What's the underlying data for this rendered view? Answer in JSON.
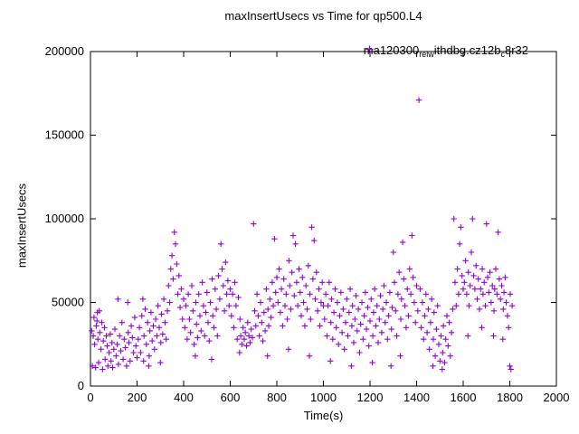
{
  "chart_data": {
    "type": "scatter",
    "title": "maxInsertUsecs vs Time for qp500.L4",
    "xlabel": "Time(s)",
    "ylabel": "maxInsertUsecs",
    "xlim": [
      0,
      2000
    ],
    "ylim": [
      0,
      200000
    ],
    "xticks": [
      0,
      200,
      400,
      600,
      800,
      1000,
      1200,
      1400,
      1600,
      1800,
      2000
    ],
    "yticks": [
      0,
      50000,
      100000,
      150000,
      200000
    ],
    "grid": false,
    "legend_position": "top-right-inside",
    "point_color": "#9400d3",
    "marker": "plus",
    "legend": {
      "label_raw": "ma120300_rel_withdbg.cz12b_c8r32",
      "label_parts": [
        {
          "t": "ma120300",
          "sub": false
        },
        {
          "t": "rel",
          "sub": true
        },
        {
          "t": "w",
          "sub": true
        },
        {
          "t": "ithdbg.cz12b",
          "sub": false
        },
        {
          "t": "c",
          "sub": true
        },
        {
          "t": "8r32",
          "sub": false
        }
      ]
    },
    "points": [
      [
        5,
        33000
      ],
      [
        8,
        12000
      ],
      [
        12,
        30000
      ],
      [
        15,
        41000
      ],
      [
        18,
        25000
      ],
      [
        22,
        11000
      ],
      [
        25,
        36000
      ],
      [
        28,
        39000
      ],
      [
        30,
        44000
      ],
      [
        32,
        28000
      ],
      [
        35,
        14000
      ],
      [
        38,
        45000
      ],
      [
        40,
        32000
      ],
      [
        45,
        22000
      ],
      [
        48,
        38000
      ],
      [
        52,
        10000
      ],
      [
        55,
        27000
      ],
      [
        60,
        35000
      ],
      [
        63,
        16000
      ],
      [
        68,
        30000
      ],
      [
        72,
        24000
      ],
      [
        75,
        12000
      ],
      [
        80,
        20000
      ],
      [
        85,
        31000
      ],
      [
        88,
        15000
      ],
      [
        92,
        26000
      ],
      [
        95,
        11000
      ],
      [
        100,
        22000
      ],
      [
        105,
        34000
      ],
      [
        110,
        18000
      ],
      [
        115,
        25000
      ],
      [
        118,
        52000
      ],
      [
        120,
        13000
      ],
      [
        125,
        30000
      ],
      [
        130,
        21000
      ],
      [
        135,
        38000
      ],
      [
        140,
        16000
      ],
      [
        145,
        28000
      ],
      [
        150,
        23000
      ],
      [
        155,
        12000
      ],
      [
        160,
        50000
      ],
      [
        162,
        32000
      ],
      [
        165,
        26000
      ],
      [
        170,
        15000
      ],
      [
        175,
        36000
      ],
      [
        180,
        29000
      ],
      [
        185,
        20000
      ],
      [
        190,
        41000
      ],
      [
        195,
        24000
      ],
      [
        200,
        17000
      ],
      [
        205,
        28000
      ],
      [
        210,
        35000
      ],
      [
        215,
        20000
      ],
      [
        220,
        42000
      ],
      [
        225,
        52000
      ],
      [
        228,
        15000
      ],
      [
        230,
        30000
      ],
      [
        235,
        46000
      ],
      [
        240,
        25000
      ],
      [
        245,
        38000
      ],
      [
        250,
        12000
      ],
      [
        252,
        18000
      ],
      [
        255,
        33000
      ],
      [
        260,
        44000
      ],
      [
        265,
        27000
      ],
      [
        270,
        36000
      ],
      [
        275,
        22000
      ],
      [
        280,
        40000
      ],
      [
        285,
        30000
      ],
      [
        290,
        48000
      ],
      [
        295,
        35000
      ],
      [
        300,
        14000
      ],
      [
        302,
        26000
      ],
      [
        305,
        43000
      ],
      [
        310,
        31000
      ],
      [
        315,
        52000
      ],
      [
        320,
        38000
      ],
      [
        325,
        28000
      ],
      [
        330,
        45000
      ],
      [
        335,
        60000
      ],
      [
        340,
        50000
      ],
      [
        345,
        70000
      ],
      [
        350,
        78000
      ],
      [
        355,
        64000
      ],
      [
        360,
        92000
      ],
      [
        365,
        85000
      ],
      [
        370,
        73000
      ],
      [
        375,
        55000
      ],
      [
        380,
        66000
      ],
      [
        385,
        47000
      ],
      [
        390,
        58000
      ],
      [
        395,
        40000
      ],
      [
        400,
        52000
      ],
      [
        405,
        35000
      ],
      [
        410,
        48000
      ],
      [
        415,
        28000
      ],
      [
        420,
        55000
      ],
      [
        425,
        40000
      ],
      [
        430,
        32000
      ],
      [
        435,
        60000
      ],
      [
        440,
        45000
      ],
      [
        445,
        25000
      ],
      [
        450,
        18000
      ],
      [
        452,
        50000
      ],
      [
        455,
        37000
      ],
      [
        460,
        29000
      ],
      [
        465,
        55000
      ],
      [
        470,
        42000
      ],
      [
        475,
        33000
      ],
      [
        480,
        62000
      ],
      [
        485,
        48000
      ],
      [
        490,
        30000
      ],
      [
        495,
        44000
      ],
      [
        500,
        56000
      ],
      [
        505,
        38000
      ],
      [
        510,
        27000
      ],
      [
        515,
        50000
      ],
      [
        520,
        16000
      ],
      [
        522,
        64000
      ],
      [
        525,
        42000
      ],
      [
        530,
        35000
      ],
      [
        535,
        58000
      ],
      [
        540,
        46000
      ],
      [
        545,
        30000
      ],
      [
        550,
        66000
      ],
      [
        555,
        52000
      ],
      [
        560,
        85000
      ],
      [
        565,
        70000
      ],
      [
        570,
        60000
      ],
      [
        575,
        45000
      ],
      [
        580,
        74000
      ],
      [
        585,
        55000
      ],
      [
        590,
        63000
      ],
      [
        595,
        48000
      ],
      [
        600,
        58000
      ],
      [
        605,
        42000
      ],
      [
        610,
        55000
      ],
      [
        615,
        35000
      ],
      [
        620,
        62000
      ],
      [
        625,
        48000
      ],
      [
        630,
        28000
      ],
      [
        635,
        53000
      ],
      [
        640,
        20000
      ],
      [
        642,
        40000
      ],
      [
        645,
        30000
      ],
      [
        650,
        25000
      ],
      [
        655,
        35000
      ],
      [
        660,
        28000
      ],
      [
        665,
        32000
      ],
      [
        670,
        24000
      ],
      [
        675,
        38000
      ],
      [
        680,
        30000
      ],
      [
        685,
        26000
      ],
      [
        690,
        34000
      ],
      [
        695,
        29000
      ],
      [
        700,
        97000
      ],
      [
        705,
        45000
      ],
      [
        710,
        36000
      ],
      [
        715,
        55000
      ],
      [
        720,
        42000
      ],
      [
        725,
        30000
      ],
      [
        730,
        50000
      ],
      [
        735,
        38000
      ],
      [
        740,
        27000
      ],
      [
        745,
        44000
      ],
      [
        750,
        33000
      ],
      [
        755,
        58000
      ],
      [
        760,
        18000
      ],
      [
        762,
        46000
      ],
      [
        765,
        36000
      ],
      [
        770,
        52000
      ],
      [
        775,
        41000
      ],
      [
        780,
        62000
      ],
      [
        785,
        48000
      ],
      [
        790,
        88000
      ],
      [
        795,
        56000
      ],
      [
        800,
        65000
      ],
      [
        805,
        50000
      ],
      [
        810,
        70000
      ],
      [
        815,
        44000
      ],
      [
        820,
        58000
      ],
      [
        825,
        36000
      ],
      [
        830,
        64000
      ],
      [
        835,
        48000
      ],
      [
        840,
        55000
      ],
      [
        845,
        40000
      ],
      [
        850,
        22000
      ],
      [
        852,
        75000
      ],
      [
        855,
        60000
      ],
      [
        860,
        46000
      ],
      [
        865,
        68000
      ],
      [
        870,
        90000
      ],
      [
        875,
        54000
      ],
      [
        880,
        85000
      ],
      [
        885,
        62000
      ],
      [
        890,
        48000
      ],
      [
        895,
        70000
      ],
      [
        900,
        56000
      ],
      [
        905,
        42000
      ],
      [
        910,
        65000
      ],
      [
        915,
        50000
      ],
      [
        920,
        36000
      ],
      [
        925,
        60000
      ],
      [
        930,
        46000
      ],
      [
        935,
        72000
      ],
      [
        940,
        18000
      ],
      [
        942,
        55000
      ],
      [
        945,
        40000
      ],
      [
        950,
        95000
      ],
      [
        955,
        64000
      ],
      [
        960,
        87000
      ],
      [
        965,
        52000
      ],
      [
        970,
        68000
      ],
      [
        975,
        45000
      ],
      [
        980,
        58000
      ],
      [
        985,
        36000
      ],
      [
        990,
        50000
      ],
      [
        995,
        62000
      ],
      [
        1000,
        48000
      ],
      [
        1005,
        40000
      ],
      [
        1010,
        55000
      ],
      [
        1015,
        30000
      ],
      [
        1020,
        48000
      ],
      [
        1025,
        62000
      ],
      [
        1030,
        15000
      ],
      [
        1032,
        38000
      ],
      [
        1035,
        52000
      ],
      [
        1040,
        28000
      ],
      [
        1045,
        44000
      ],
      [
        1050,
        58000
      ],
      [
        1055,
        35000
      ],
      [
        1060,
        50000
      ],
      [
        1065,
        25000
      ],
      [
        1070,
        42000
      ],
      [
        1075,
        56000
      ],
      [
        1080,
        32000
      ],
      [
        1085,
        46000
      ],
      [
        1090,
        22000
      ],
      [
        1095,
        38000
      ],
      [
        1100,
        52000
      ],
      [
        1105,
        30000
      ],
      [
        1110,
        44000
      ],
      [
        1115,
        58000
      ],
      [
        1120,
        12000
      ],
      [
        1122,
        36000
      ],
      [
        1125,
        48000
      ],
      [
        1130,
        26000
      ],
      [
        1135,
        40000
      ],
      [
        1140,
        54000
      ],
      [
        1145,
        33000
      ],
      [
        1150,
        46000
      ],
      [
        1155,
        20000
      ],
      [
        1160,
        37000
      ],
      [
        1165,
        50000
      ],
      [
        1170,
        28000
      ],
      [
        1175,
        42000
      ],
      [
        1180,
        56000
      ],
      [
        1185,
        34000
      ],
      [
        1190,
        47000
      ],
      [
        1195,
        24000
      ],
      [
        1200,
        39000
      ],
      [
        1205,
        52000
      ],
      [
        1210,
        14000
      ],
      [
        1212,
        30000
      ],
      [
        1215,
        44000
      ],
      [
        1220,
        58000
      ],
      [
        1225,
        36000
      ],
      [
        1230,
        48000
      ],
      [
        1235,
        26000
      ],
      [
        1240,
        40000
      ],
      [
        1245,
        54000
      ],
      [
        1250,
        32000
      ],
      [
        1255,
        46000
      ],
      [
        1260,
        60000
      ],
      [
        1265,
        38000
      ],
      [
        1270,
        50000
      ],
      [
        1275,
        28000
      ],
      [
        1280,
        42000
      ],
      [
        1285,
        56000
      ],
      [
        1290,
        12000
      ],
      [
        1292,
        34000
      ],
      [
        1295,
        47000
      ],
      [
        1300,
        80000
      ],
      [
        1305,
        62000
      ],
      [
        1310,
        45000
      ],
      [
        1315,
        30000
      ],
      [
        1320,
        55000
      ],
      [
        1325,
        68000
      ],
      [
        1330,
        18000
      ],
      [
        1332,
        40000
      ],
      [
        1335,
        52000
      ],
      [
        1340,
        86000
      ],
      [
        1345,
        64000
      ],
      [
        1350,
        48000
      ],
      [
        1355,
        35000
      ],
      [
        1360,
        58000
      ],
      [
        1365,
        42000
      ],
      [
        1370,
        70000
      ],
      [
        1375,
        55000
      ],
      [
        1380,
        90000
      ],
      [
        1385,
        65000
      ],
      [
        1390,
        50000
      ],
      [
        1395,
        38000
      ],
      [
        1400,
        60000
      ],
      [
        1405,
        45000
      ],
      [
        1410,
        171000
      ],
      [
        1415,
        58000
      ],
      [
        1420,
        35000
      ],
      [
        1425,
        50000
      ],
      [
        1430,
        28000
      ],
      [
        1435,
        42000
      ],
      [
        1440,
        55000
      ],
      [
        1445,
        32000
      ],
      [
        1450,
        46000
      ],
      [
        1455,
        22000
      ],
      [
        1460,
        38000
      ],
      [
        1465,
        52000
      ],
      [
        1470,
        12000
      ],
      [
        1472,
        28000
      ],
      [
        1475,
        44000
      ],
      [
        1480,
        18000
      ],
      [
        1485,
        34000
      ],
      [
        1490,
        48000
      ],
      [
        1495,
        25000
      ],
      [
        1500,
        15000
      ],
      [
        1505,
        30000
      ],
      [
        1510,
        10000
      ],
      [
        1512,
        20000
      ],
      [
        1515,
        36000
      ],
      [
        1520,
        14000
      ],
      [
        1525,
        28000
      ],
      [
        1530,
        42000
      ],
      [
        1535,
        24000
      ],
      [
        1540,
        38000
      ],
      [
        1545,
        18000
      ],
      [
        1550,
        32000
      ],
      [
        1555,
        46000
      ],
      [
        1560,
        100000
      ],
      [
        1565,
        62000
      ],
      [
        1570,
        48000
      ],
      [
        1575,
        70000
      ],
      [
        1580,
        55000
      ],
      [
        1585,
        85000
      ],
      [
        1590,
        95000
      ],
      [
        1595,
        66000
      ],
      [
        1600,
        58000
      ],
      [
        1605,
        62000
      ],
      [
        1610,
        75000
      ],
      [
        1615,
        55000
      ],
      [
        1620,
        30000
      ],
      [
        1622,
        68000
      ],
      [
        1625,
        48000
      ],
      [
        1630,
        60000
      ],
      [
        1635,
        80000
      ],
      [
        1640,
        100000
      ],
      [
        1645,
        66000
      ],
      [
        1650,
        58000
      ],
      [
        1655,
        72000
      ],
      [
        1660,
        52000
      ],
      [
        1665,
        64000
      ],
      [
        1670,
        46000
      ],
      [
        1675,
        58000
      ],
      [
        1680,
        35000
      ],
      [
        1682,
        70000
      ],
      [
        1685,
        55000
      ],
      [
        1690,
        62000
      ],
      [
        1695,
        48000
      ],
      [
        1700,
        97000
      ],
      [
        1705,
        65000
      ],
      [
        1710,
        56000
      ],
      [
        1715,
        68000
      ],
      [
        1720,
        50000
      ],
      [
        1725,
        60000
      ],
      [
        1730,
        30000
      ],
      [
        1732,
        45000
      ],
      [
        1735,
        58000
      ],
      [
        1740,
        70000
      ],
      [
        1745,
        55000
      ],
      [
        1750,
        92000
      ],
      [
        1755,
        64000
      ],
      [
        1760,
        52000
      ],
      [
        1765,
        60000
      ],
      [
        1770,
        28000
      ],
      [
        1772,
        46000
      ],
      [
        1775,
        56000
      ],
      [
        1780,
        65000
      ],
      [
        1785,
        50000
      ],
      [
        1790,
        42000
      ],
      [
        1795,
        35000
      ],
      [
        1800,
        12000
      ],
      [
        1802,
        55000
      ],
      [
        1805,
        10000
      ],
      [
        1810,
        48000
      ]
    ]
  }
}
